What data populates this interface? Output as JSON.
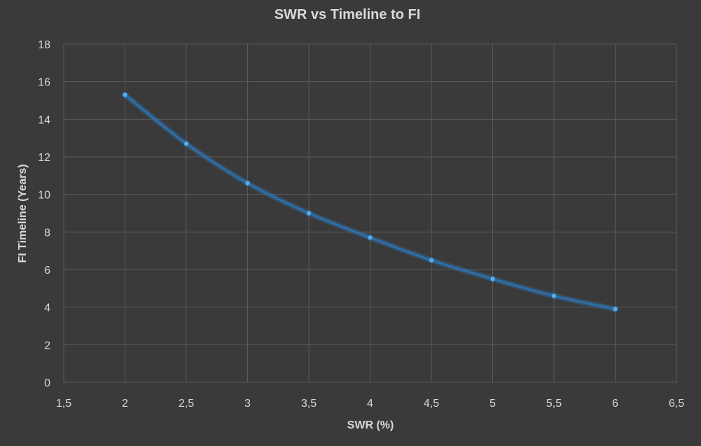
{
  "chart_data": {
    "type": "scatter",
    "title": "SWR vs Timeline to FI",
    "xlabel": "SWR (%)",
    "ylabel": "FI Timeline (Years)",
    "xlim": [
      1.5,
      6.5
    ],
    "ylim": [
      0,
      18
    ],
    "x_ticks": [
      "1,5",
      "2",
      "2,5",
      "3",
      "3,5",
      "4",
      "4,5",
      "5",
      "5,5",
      "6",
      "6,5"
    ],
    "y_ticks": [
      "0",
      "2",
      "4",
      "6",
      "8",
      "10",
      "12",
      "14",
      "16",
      "18"
    ],
    "grid": true,
    "legend": "none",
    "smoothed_line": true,
    "series": [
      {
        "x": [
          2,
          2.5,
          3,
          3.5,
          4,
          4.5,
          5,
          5.5,
          6
        ],
        "y": [
          15.3,
          12.7,
          10.6,
          9.0,
          7.7,
          6.5,
          5.5,
          4.6,
          3.9
        ]
      }
    ],
    "colors": {
      "background": "#3a3a3a",
      "grid": "#5a5a5a",
      "line": "#2e6fa8",
      "marker": "#5aaee8",
      "text": "#d9d9d9"
    }
  }
}
